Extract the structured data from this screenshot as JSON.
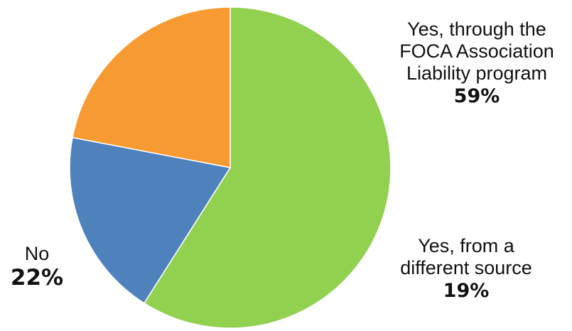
{
  "chart_data": {
    "type": "pie",
    "title": "",
    "slices": [
      {
        "label": "Yes, through the\nFOCA Association\nLiability program",
        "value": 59,
        "display": "59%",
        "color": "#92d050"
      },
      {
        "label": "Yes, from a\ndifferent source",
        "value": 19,
        "display": "19%",
        "color": "#4f81bd"
      },
      {
        "label": "No",
        "value": 22,
        "display": "22%",
        "color": "#f79a32"
      }
    ],
    "legend": "none",
    "start_angle_deg": 0,
    "direction": "clockwise"
  }
}
